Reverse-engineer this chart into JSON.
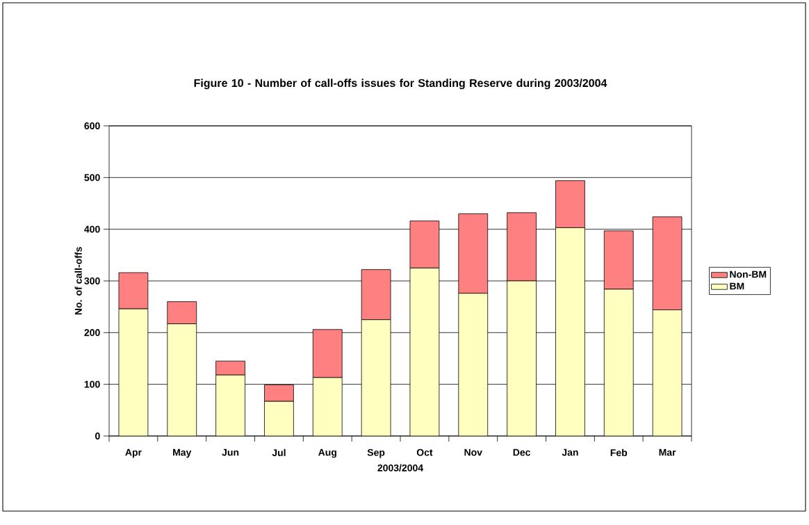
{
  "chart_data": {
    "type": "bar",
    "title": "Figure 10 - Number of call-offs issues for Standing Reserve during 2003/2004",
    "xlabel": "2003/2004",
    "ylabel": "No. of call-offs",
    "categories": [
      "Apr",
      "May",
      "Jun",
      "Jul",
      "Aug",
      "Sep",
      "Oct",
      "Nov",
      "Dec",
      "Jan",
      "Feb",
      "Mar"
    ],
    "stacked": true,
    "series": [
      {
        "name": "BM",
        "color": "#ffffc0",
        "values": [
          246,
          217,
          118,
          67,
          113,
          225,
          325,
          276,
          300,
          403,
          284,
          244
        ]
      },
      {
        "name": "Non-BM",
        "color": "#ff8080",
        "values": [
          70,
          43,
          27,
          32,
          93,
          97,
          91,
          154,
          132,
          91,
          113,
          180
        ]
      }
    ],
    "ylim": [
      0,
      600
    ],
    "yticks": [
      0,
      100,
      200,
      300,
      400,
      500,
      600
    ],
    "grid": "y",
    "legend": "right"
  }
}
